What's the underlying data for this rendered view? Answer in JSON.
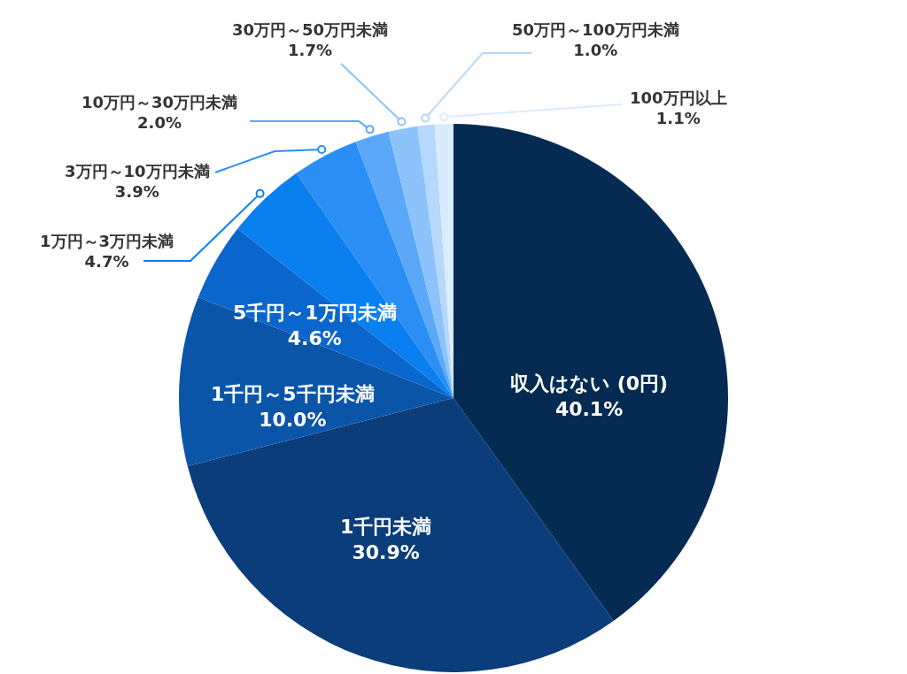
{
  "chart_data": {
    "type": "pie",
    "categories": [
      "収入はない (0円)",
      "1千円未満",
      "1千円～5千円未満",
      "5千円～1万円未満",
      "1万円～3万円未満",
      "3万円～10万円未満",
      "10万円～30万円未満",
      "30万円～50万円未満",
      "50万円～100万円未満",
      "100万円以上"
    ],
    "values": [
      40.1,
      30.9,
      10.0,
      4.6,
      4.7,
      3.9,
      2.0,
      1.7,
      1.0,
      1.1
    ],
    "value_labels": [
      "40.1%",
      "30.9%",
      "10.0%",
      "4.6%",
      "4.7%",
      "3.9%",
      "2.0%",
      "1.7%",
      "1.0%",
      "1.1%"
    ],
    "colors": [
      "#062b52",
      "#0a3d7a",
      "#0b55a8",
      "#0a66cc",
      "#0a7ff0",
      "#2b8ef5",
      "#5aa8f7",
      "#8cc3fa",
      "#b5d8fc",
      "#d9ebfd"
    ],
    "legend": false
  }
}
